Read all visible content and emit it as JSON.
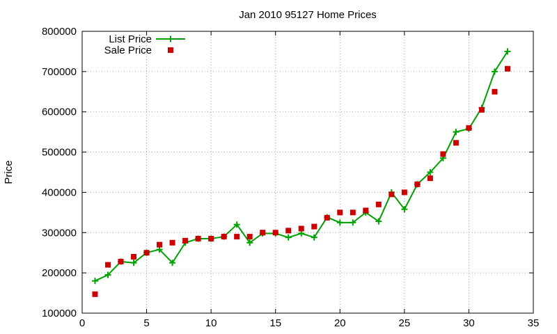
{
  "chart_data": {
    "type": "line",
    "title": "Jan 2010 95127 Home Prices",
    "xlabel": "",
    "ylabel": "Price",
    "xlim": [
      0,
      35
    ],
    "ylim": [
      100000,
      800000
    ],
    "xticks": [
      "0",
      "5",
      "10",
      "15",
      "20",
      "25",
      "30",
      "35"
    ],
    "yticks": [
      "100000",
      "200000",
      "300000",
      "400000",
      "500000",
      "600000",
      "700000",
      "800000"
    ],
    "grid": true,
    "legend_position": "top-left",
    "x": [
      1,
      2,
      3,
      4,
      5,
      6,
      7,
      8,
      9,
      10,
      11,
      12,
      13,
      14,
      15,
      16,
      17,
      18,
      19,
      20,
      21,
      22,
      23,
      24,
      25,
      26,
      27,
      28,
      29,
      30,
      31,
      32,
      33
    ],
    "series": [
      {
        "name": "List Price",
        "style": "linespoints",
        "marker": "plus",
        "color": "#00a000",
        "values": [
          180000,
          195000,
          228000,
          225000,
          250000,
          258000,
          225000,
          275000,
          285000,
          285000,
          290000,
          320000,
          275000,
          298000,
          298000,
          288000,
          298000,
          288000,
          338000,
          325000,
          325000,
          350000,
          328000,
          400000,
          358000,
          420000,
          450000,
          485000,
          550000,
          558000,
          610000,
          700000,
          750000
        ]
      },
      {
        "name": "Sale Price",
        "style": "points",
        "marker": "square",
        "color": "#cc0000",
        "values": [
          147000,
          220000,
          228000,
          240000,
          250000,
          270000,
          275000,
          280000,
          285000,
          285000,
          290000,
          290000,
          290000,
          300000,
          300000,
          305000,
          310000,
          315000,
          337000,
          350000,
          350000,
          355000,
          370000,
          395000,
          400000,
          420000,
          435000,
          495000,
          523000,
          560000,
          605000,
          650000,
          707000
        ]
      }
    ]
  }
}
